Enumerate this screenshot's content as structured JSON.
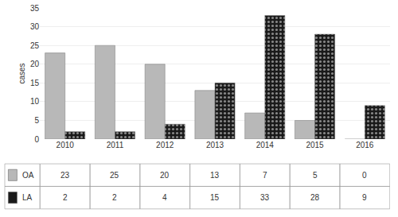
{
  "chart_data": {
    "type": "bar",
    "categories": [
      "2010",
      "2011",
      "2012",
      "2013",
      "2014",
      "2015",
      "2016"
    ],
    "series": [
      {
        "name": "OA",
        "color": "#b8b8b8",
        "values": [
          23,
          25,
          20,
          13,
          7,
          5,
          0
        ]
      },
      {
        "name": "LA",
        "color": "#1a1a1a",
        "values": [
          2,
          2,
          4,
          15,
          33,
          28,
          9
        ]
      }
    ],
    "ylabel": "cases",
    "ylim": [
      0,
      35
    ],
    "yticks": [
      0,
      5,
      10,
      15,
      20,
      25,
      30,
      35
    ],
    "grid": true
  }
}
